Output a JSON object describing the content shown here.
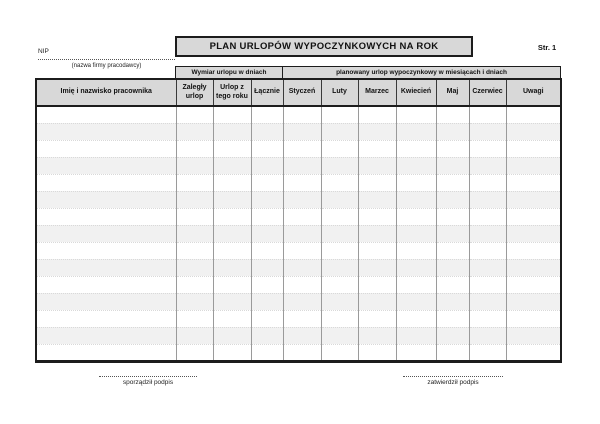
{
  "page": {
    "number_label": "Str. 1"
  },
  "header": {
    "title": "PLAN URLOPÓW WYPOCZYNKOWYCH NA ROK",
    "nip_label": "NIP",
    "company_caption": "(nazwa firmy pracodawcy)"
  },
  "table": {
    "group_headers": {
      "leave_dimension": "Wymiar urlopu w dniach",
      "planned_leave": "planowany urlop wypoczynkowy w miesiącach i dniach"
    },
    "columns": [
      "Imię i nazwisko pracownika",
      "Zaległy urlop",
      "Urlop z tego roku",
      "Łącznie",
      "Styczeń",
      "Luty",
      "Marzec",
      "Kwiecień",
      "Maj",
      "Czerwiec",
      "Uwagi"
    ],
    "body_row_count": 15
  },
  "footer": {
    "signatures": [
      {
        "caption": "sporządził podpis"
      },
      {
        "caption": "zatwierdził podpis"
      }
    ]
  }
}
